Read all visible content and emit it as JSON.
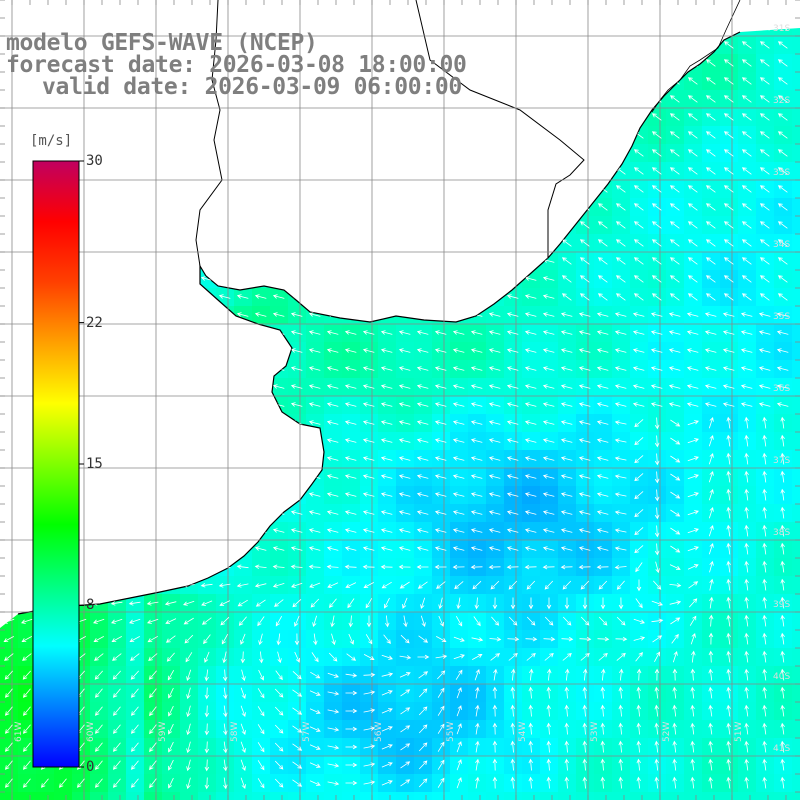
{
  "header": {
    "model": "modelo GEFS-WAVE (NCEP)",
    "forecast": "forecast date: 2026-03-08 18:00:00",
    "valid": "valid date: 2026-03-09 06:00:00"
  },
  "colorbar": {
    "unit": "[m/s]",
    "min": 0,
    "max": 30,
    "ticks": [
      "30",
      "22",
      "15",
      "8",
      "0"
    ],
    "tick_values": [
      30,
      22,
      15,
      8,
      0
    ],
    "colors": [
      "#0000ff",
      "#0080ff",
      "#00ffff",
      "#00ff80",
      "#00ff00",
      "#80ff00",
      "#ffff00",
      "#ffa000",
      "#ff4000",
      "#ff0000",
      "#c00060"
    ]
  },
  "map": {
    "region": "Rio de la Plata / South Atlantic",
    "ocean_field": "wind speed",
    "land_color": "#ffffff",
    "grid_color": "#888888",
    "lon_labels": [
      "61W",
      "60W",
      "59W",
      "58W",
      "57W",
      "56W",
      "55W",
      "54W",
      "53W",
      "52W",
      "51W"
    ],
    "lat_labels": [
      "31S",
      "32S",
      "33S",
      "34S",
      "35S",
      "36S",
      "37S",
      "38S",
      "39S",
      "40S",
      "41S"
    ]
  }
}
